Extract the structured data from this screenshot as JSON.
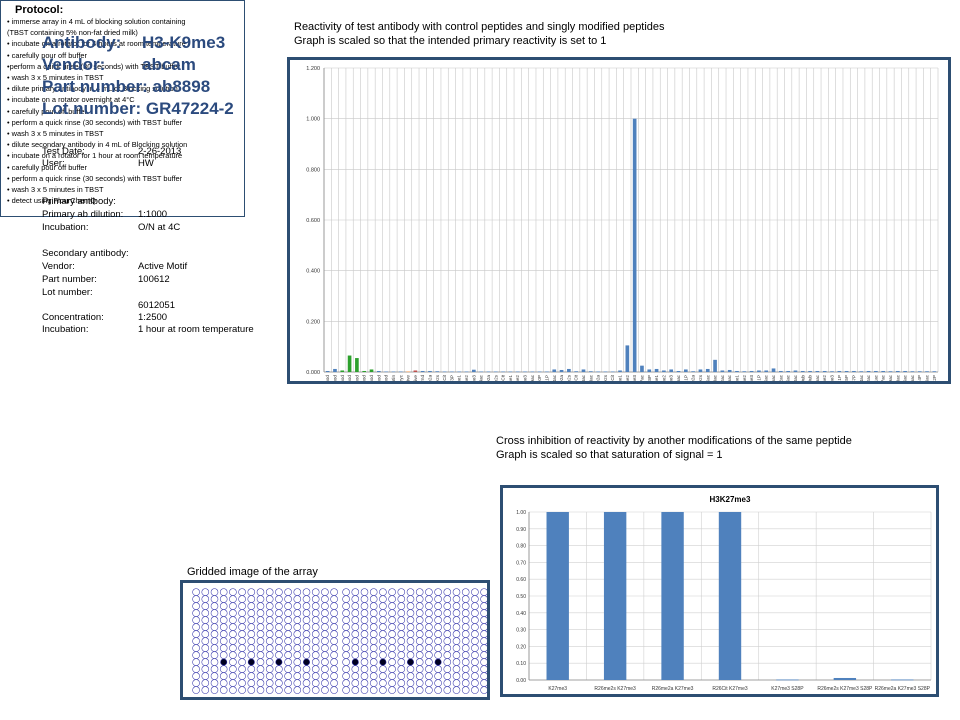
{
  "antibody": {
    "antibody_label": "Antibody:",
    "antibody_value": "H3-K9me3",
    "vendor_label": "Vendor:",
    "vendor_value": "abcam",
    "part_line": "Part number: ab8898",
    "lot_line": "Lot number:  GR47224-2"
  },
  "test_info": {
    "date_label": "Test Date:",
    "date_value": "2-26-2013",
    "user_label": "User:",
    "user_value": "HW"
  },
  "primary": {
    "heading": "Primary antibody:",
    "dilution_label": "Primary ab dilution:",
    "dilution_value": "1:1000",
    "incubation_label": "Incubation:",
    "incubation_value": "O/N at 4C"
  },
  "secondary": {
    "heading": "Secondary antibody:",
    "vendor_label": "Vendor:",
    "vendor_value": "Active Motif",
    "part_label": "Part number:",
    "part_value": "100612",
    "lot_label": "Lot number:",
    "lot_value": "6012051",
    "conc_label": "Concentration:",
    "conc_value": "1:2500",
    "incubation_label": "Incubation:",
    "incubation_value": "1 hour at room temperature"
  },
  "protocol": {
    "title": "Protocol:",
    "steps": [
      "• immerse array in 4 mL of blocking solution containing",
      "(TBST containing 5% non-fat dried milk)",
      "• incubate on a rotator for 4 hours at room temperature",
      "• carefully pour off buffer",
      "•perform a quick rinse (30 seconds) with TBST buffer",
      "• wash 3 x 5 minutes in TBST",
      "• dilute primary antibody in 4 mL of Blocking solution",
      "• incubate on a rotator overnight at 4°C",
      "•  carefully pour off buffer",
      "• perform a quick rinse (30 seconds) with TBST buffer",
      "• wash 3 x 5 minutes in TBST",
      "•  dilute secondary antibody in 4 mL of Blocking solution",
      "• incubate on a rotator for 1 hour at room temperature",
      "• carefully pour off buffer",
      "• perform a quick rinse (30 seconds) with TBST buffer",
      "• wash 3 x 5 minutes in TBST",
      "• detect using FlourChemQ"
    ]
  },
  "captions": {
    "chart1_line1": "Reactivity of test antibody with control peptides and singly modified peptides",
    "chart1_line2": "Graph is scaled so that the intended primary reactivity is set to 1",
    "chart2_line1": "Cross inhibition of reactivity by another modifications of the same peptide",
    "chart2_line2": "Graph is scaled so that saturation of signal = 1",
    "array": "Gridded image of the array"
  },
  "colors": {
    "frame": "#2d4e72",
    "bar_blue": "#4f81bd",
    "bar_green": "#2ca02c",
    "bar_red": "#c0504d",
    "bar_orange": "#f79646",
    "grid_circle": "#3333aa"
  },
  "array_image": {
    "spots_left": [
      3,
      6,
      9,
      12
    ],
    "spots_right": [
      1,
      4,
      7,
      10
    ]
  },
  "chart_data": [
    {
      "type": "bar",
      "title": "",
      "xlabel": "",
      "ylabel": "",
      "ylim": [
        0,
        1.2
      ],
      "yticks": [
        "0.000",
        "0.200",
        "0.400",
        "0.600",
        "0.800",
        "1.000",
        "1.200"
      ],
      "grid": true,
      "categories": [
        "H3 unmod",
        "H3 unmod",
        "H3 unmod",
        "H3 unmod",
        "H3 unmod",
        "H4 unmod",
        "H4 unmod",
        "H2a unmod",
        "H2b unmod",
        "biotin",
        "c-myc",
        "negative",
        "negative",
        "BiAgrnd",
        "H3 R2me2a",
        "H3 R2me2s",
        "H3 R2Cit",
        "H3 T3P",
        "H3 K4me1",
        "H3 K4me2",
        "H3 K4me3",
        "H3 K4ac",
        "H3 R8me2a",
        "H3 R8me2s",
        "H3 R8Cit",
        "H3 K9me1",
        "H3 K9me2",
        "H3 K9me3",
        "H3 K9ac",
        "H3 S10P",
        "H3 T11P",
        "H3 K14ac",
        "H3 R17me2a",
        "H3 R17me2s",
        "H3 R17Cit",
        "H3 K18ac",
        "H3 K23ac",
        "H3 R26me2a",
        "H3 R26me2s",
        "H3 R26Cit",
        "H3 K27me1",
        "H3 K27me2",
        "H3 K27me3",
        "H3 K27ac",
        "H3 S28P",
        "H3 K36me1",
        "H3 K36me2",
        "H3 K36me3",
        "H3 K36ac",
        "H4 S1P",
        "H4 R3me2a",
        "H4 R3me2s",
        "H4 K5ac",
        "H4 K8ac",
        "H4 K12ac",
        "H4 K16ac",
        "H4 K20me1",
        "H4 K20me2",
        "H4 K20me3",
        "H2a S1P",
        "H2a K5ac",
        "H2b K5ac",
        "H2b K12ac",
        "H2b K15ac",
        "H2b K20ac",
        "H2a K119ub",
        "H2b K120ub",
        "H3 K56ac",
        "H3 K79me2",
        "H3 K79me3",
        "H3 Y41P",
        "H3 T45P",
        "H3 S57P",
        "H3 K64ac",
        "H3 K122ac",
        "H4 K31ac",
        "H4 K77ac",
        "H4 K79ac",
        "H2a K13ac",
        "H2a K15ac",
        "H2a K36ac",
        "H2b S14P",
        "H2b K116ac",
        "H2b S112P"
      ],
      "series": [
        {
          "values": [
            0.004,
            0.012,
            0.006,
            0.065,
            0.055,
            0.004,
            0.01,
            0.004,
            0.002,
            0.002,
            0.002,
            0.002,
            0.006,
            0.004,
            0.004,
            0.003,
            0.002,
            0.002,
            0.002,
            0.002,
            0.009,
            0.002,
            0.002,
            0.002,
            0.002,
            0.002,
            0.002,
            0.002,
            0.002,
            0.002,
            0.002,
            0.01,
            0.008,
            0.012,
            0.003,
            0.01,
            0.003,
            0.002,
            0.002,
            0.002,
            0.006,
            0.105,
            1.0,
            0.025,
            0.01,
            0.012,
            0.006,
            0.01,
            0.004,
            0.01,
            0.003,
            0.01,
            0.012,
            0.048,
            0.006,
            0.008,
            0.004,
            0.003,
            0.004,
            0.006,
            0.006,
            0.014,
            0.004,
            0.004,
            0.006,
            0.004,
            0.004,
            0.004,
            0.004,
            0.003,
            0.004,
            0.004,
            0.004,
            0.003,
            0.004,
            0.004,
            0.004,
            0.003,
            0.004,
            0.004,
            0.003,
            0.003,
            0.003,
            0.003
          ]
        }
      ]
    },
    {
      "type": "bar",
      "title": "H3K27me3",
      "xlabel": "",
      "ylabel": "",
      "ylim": [
        0,
        1.0
      ],
      "yticks": [
        "0.00",
        "0.10",
        "0.20",
        "0.30",
        "0.40",
        "0.50",
        "0.60",
        "0.70",
        "0.80",
        "0.90",
        "1.00"
      ],
      "grid": true,
      "categories": [
        "K27me3",
        "R26me2s K27me3",
        "R26me2a K27me3",
        "R26Cit K27me3",
        "K27me3 S28P",
        "R26me2s K27me3 S28P",
        "R26me2a K27me3 S28P"
      ],
      "series": [
        {
          "values": [
            1.0,
            1.0,
            1.0,
            1.0,
            0.003,
            0.012,
            0.003
          ]
        }
      ]
    }
  ]
}
